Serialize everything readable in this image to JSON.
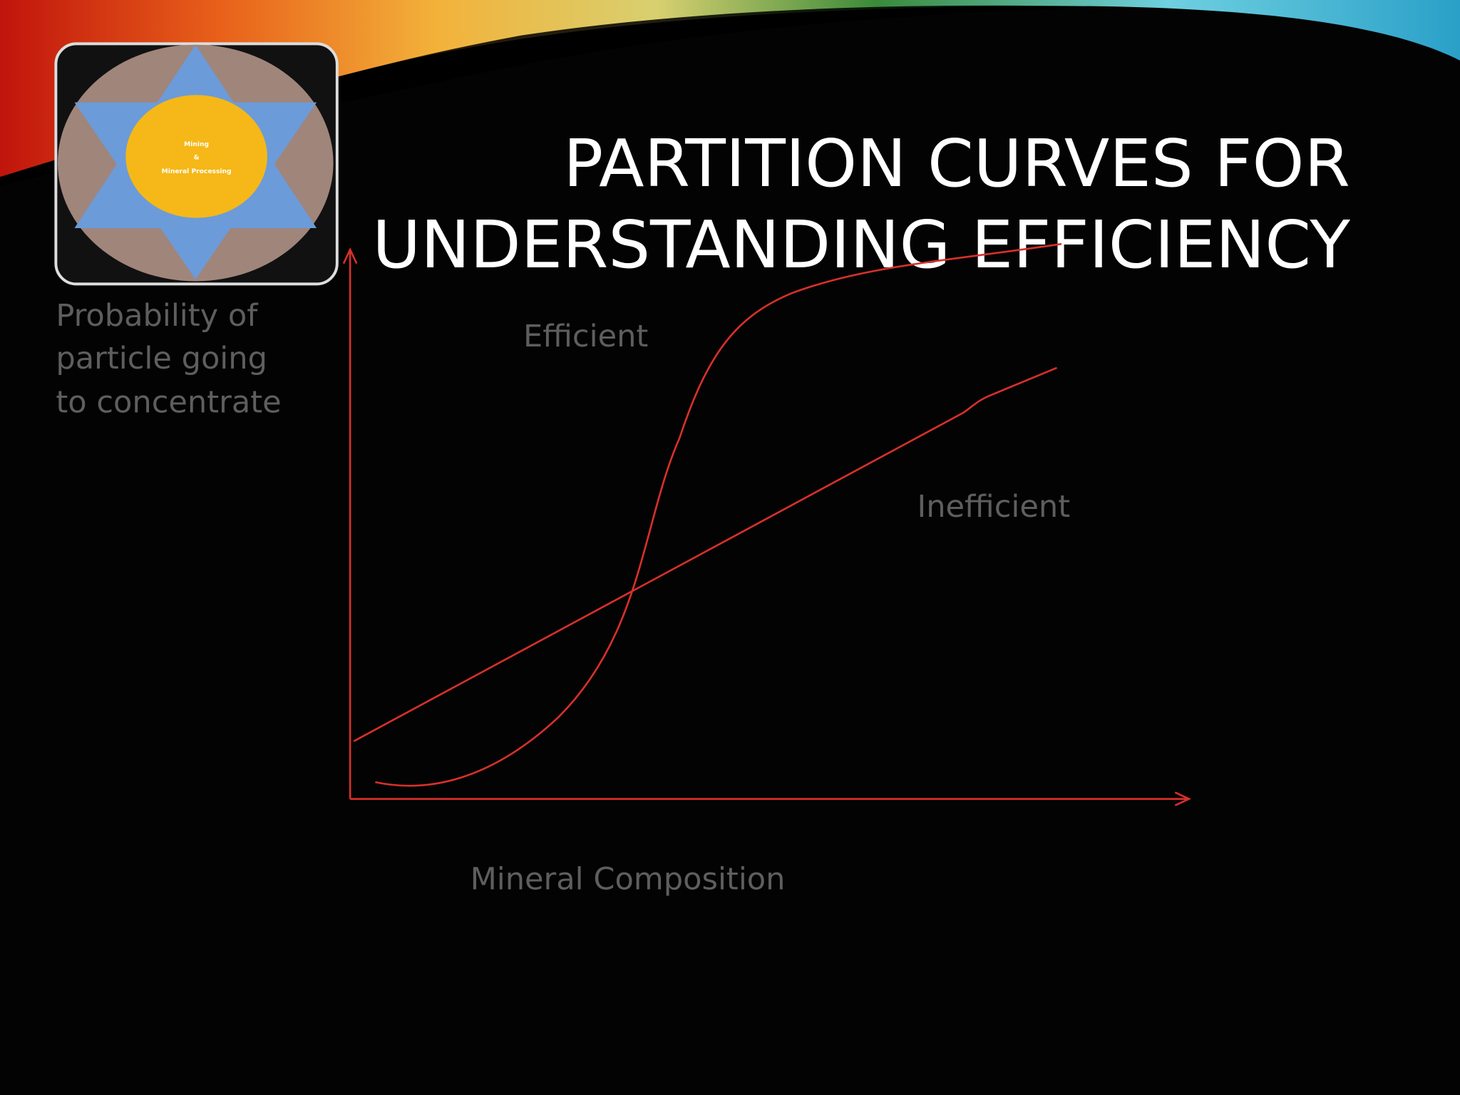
{
  "logo": {
    "lines": [
      "Mining",
      "&",
      "Mineral Processing"
    ]
  },
  "title": {
    "lines": [
      "PARTITION CURVES FOR",
      "UNDERSTANDING EFFICIENCY"
    ]
  },
  "diagram": {
    "y_axis_label": {
      "lines": [
        "Probability of",
        "particle going",
        "to concentrate"
      ]
    },
    "curve_labels": [
      "Efficient",
      "Inefficient"
    ],
    "x_axis_label": "Mineral Composition"
  }
}
